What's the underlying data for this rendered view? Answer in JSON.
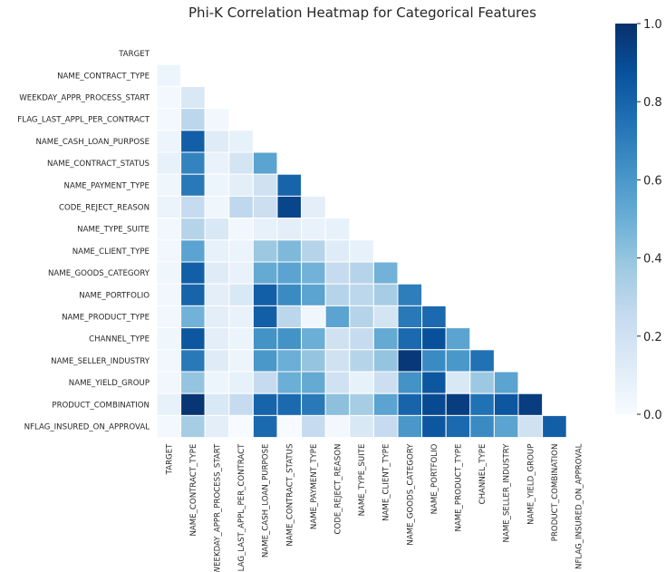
{
  "chart_data": {
    "type": "heatmap",
    "title": "Phi-K Correlation Heatmap for Categorical Features",
    "rows": [
      "TARGET",
      "NAME_CONTRACT_TYPE",
      "WEEKDAY_APPR_PROCESS_START",
      "FLAG_LAST_APPL_PER_CONTRACT",
      "NAME_CASH_LOAN_PURPOSE",
      "NAME_CONTRACT_STATUS",
      "NAME_PAYMENT_TYPE",
      "CODE_REJECT_REASON",
      "NAME_TYPE_SUITE",
      "NAME_CLIENT_TYPE",
      "NAME_GOODS_CATEGORY",
      "NAME_PORTFOLIO",
      "NAME_PRODUCT_TYPE",
      "CHANNEL_TYPE",
      "NAME_SELLER_INDUSTRY",
      "NAME_YIELD_GROUP",
      "PRODUCT_COMBINATION",
      "NFLAG_INSURED_ON_APPROVAL"
    ],
    "columns": [
      "TARGET",
      "NAME_CONTRACT_TYPE",
      "WEEKDAY_APPR_PROCESS_START",
      "FLAG_LAST_APPL_PER_CONTRACT",
      "NAME_CASH_LOAN_PURPOSE",
      "NAME_CONTRACT_STATUS",
      "NAME_PAYMENT_TYPE",
      "CODE_REJECT_REASON",
      "NAME_TYPE_SUITE",
      "NAME_CLIENT_TYPE",
      "NAME_GOODS_CATEGORY",
      "NAME_PORTFOLIO",
      "NAME_PRODUCT_TYPE",
      "CHANNEL_TYPE",
      "NAME_SELLER_INDUSTRY",
      "NAME_YIELD_GROUP",
      "PRODUCT_COMBINATION",
      "NFLAG_INSURED_ON_APPROVAL"
    ],
    "mask": "upper triangle including diagonal",
    "values": [
      [],
      [
        0.05
      ],
      [
        0.02,
        0.15
      ],
      [
        0.02,
        0.28,
        0.03
      ],
      [
        0.05,
        0.82,
        0.12,
        0.08
      ],
      [
        0.08,
        0.68,
        0.07,
        0.18,
        0.55
      ],
      [
        0.04,
        0.72,
        0.05,
        0.1,
        0.2,
        0.8
      ],
      [
        0.06,
        0.25,
        0.04,
        0.27,
        0.22,
        0.92,
        0.1
      ],
      [
        0.03,
        0.3,
        0.15,
        0.03,
        0.08,
        0.1,
        0.07,
        0.08
      ],
      [
        0.03,
        0.55,
        0.08,
        0.06,
        0.38,
        0.45,
        0.3,
        0.12,
        0.08
      ],
      [
        0.04,
        0.82,
        0.12,
        0.07,
        0.52,
        0.55,
        0.48,
        0.25,
        0.3,
        0.48
      ],
      [
        0.03,
        0.8,
        0.1,
        0.15,
        0.82,
        0.65,
        0.55,
        0.3,
        0.28,
        0.35,
        0.7
      ],
      [
        0.03,
        0.48,
        0.1,
        0.07,
        0.82,
        0.28,
        0.04,
        0.55,
        0.3,
        0.18,
        0.72,
        0.78
      ],
      [
        0.04,
        0.85,
        0.1,
        0.06,
        0.62,
        0.62,
        0.5,
        0.2,
        0.25,
        0.52,
        0.78,
        0.88,
        0.55
      ],
      [
        0.03,
        0.72,
        0.12,
        0.05,
        0.6,
        0.5,
        0.4,
        0.2,
        0.3,
        0.4,
        0.97,
        0.65,
        0.6,
        0.75
      ],
      [
        0.03,
        0.4,
        0.05,
        0.08,
        0.25,
        0.5,
        0.52,
        0.2,
        0.08,
        0.22,
        0.62,
        0.85,
        0.15,
        0.38,
        0.55
      ],
      [
        0.08,
        0.98,
        0.15,
        0.25,
        0.8,
        0.78,
        0.72,
        0.42,
        0.35,
        0.55,
        0.8,
        0.9,
        0.95,
        0.75,
        0.85,
        0.95
      ],
      [
        0.02,
        0.35,
        0.1,
        0.0,
        0.78,
        0.0,
        0.25,
        0.02,
        0.15,
        0.25,
        0.6,
        0.85,
        0.78,
        0.65,
        0.55,
        0.2,
        0.82
      ]
    ],
    "vmin": 0.0,
    "vmax": 1.0,
    "colormap": "Blues",
    "colorbar_ticks": [
      "0.0",
      "0.2",
      "0.4",
      "0.6",
      "0.8",
      "1.0"
    ],
    "colorbar_tick_values": [
      0.0,
      0.2,
      0.4,
      0.6,
      0.8,
      1.0
    ],
    "grid_lines": "white"
  }
}
